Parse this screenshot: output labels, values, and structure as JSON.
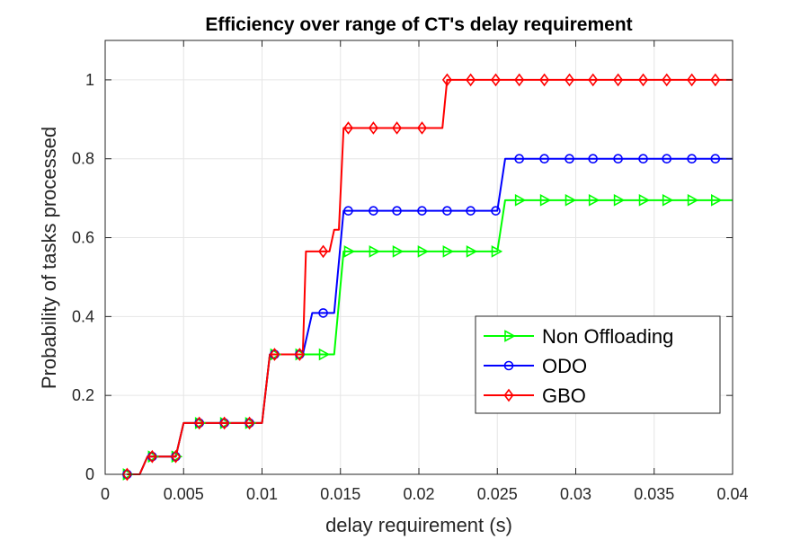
{
  "chart_data": {
    "type": "line",
    "title": "Efficiency over range of CT's delay requirement",
    "xlabel": "delay requirement (s)",
    "ylabel": "Probability of tasks processed",
    "xlim": [
      0,
      0.04
    ],
    "ylim": [
      0,
      1.1
    ],
    "x_ticks": [
      0,
      0.005,
      0.01,
      0.015,
      0.02,
      0.025,
      0.03,
      0.035,
      0.04
    ],
    "x_tick_labels": [
      "0",
      "0.005",
      "0.01",
      "0.015",
      "0.02",
      "0.025",
      "0.03",
      "0.035",
      "0.04"
    ],
    "y_ticks": [
      0,
      0.2,
      0.4,
      0.6,
      0.8,
      1
    ],
    "y_tick_labels": [
      "0",
      "0.2",
      "0.4",
      "0.6",
      "0.8",
      "1"
    ],
    "grid": true,
    "legend_position": "right",
    "marker_x": [
      0.0014,
      0.003,
      0.0045,
      0.006,
      0.0076,
      0.0092,
      0.0108,
      0.0124,
      0.0139,
      0.0155,
      0.0171,
      0.0186,
      0.0202,
      0.0218,
      0.0233,
      0.0249,
      0.0264,
      0.028,
      0.0296,
      0.0311,
      0.0327,
      0.0343,
      0.0358,
      0.0374,
      0.0389
    ],
    "series": [
      {
        "name": "Non Offloading",
        "color": "#00ff00",
        "marker": "triangle-right",
        "step_x": [
          0.0014,
          0.0022,
          0.0027,
          0.0045,
          0.005,
          0.01,
          0.0105,
          0.0146,
          0.0152,
          0.025,
          0.0255,
          0.04
        ],
        "step_y": [
          0,
          0,
          0.045,
          0.045,
          0.13,
          0.13,
          0.304,
          0.304,
          0.565,
          0.565,
          0.695,
          0.695
        ],
        "marker_y": [
          0,
          0.045,
          0.045,
          0.13,
          0.13,
          0.13,
          0.304,
          0.304,
          0.304,
          0.565,
          0.565,
          0.565,
          0.565,
          0.565,
          0.565,
          0.565,
          0.695,
          0.695,
          0.695,
          0.695,
          0.695,
          0.695,
          0.695,
          0.695,
          0.695
        ]
      },
      {
        "name": "ODO",
        "color": "#0000ff",
        "marker": "circle",
        "step_x": [
          0.0014,
          0.0022,
          0.0027,
          0.0045,
          0.005,
          0.01,
          0.0105,
          0.0126,
          0.0132,
          0.0146,
          0.0152,
          0.025,
          0.0255,
          0.04
        ],
        "step_y": [
          0,
          0,
          0.045,
          0.045,
          0.13,
          0.13,
          0.304,
          0.304,
          0.409,
          0.409,
          0.668,
          0.668,
          0.8,
          0.8
        ],
        "marker_y": [
          0,
          0.045,
          0.045,
          0.13,
          0.13,
          0.13,
          0.304,
          0.304,
          0.409,
          0.668,
          0.668,
          0.668,
          0.668,
          0.668,
          0.668,
          0.668,
          0.8,
          0.8,
          0.8,
          0.8,
          0.8,
          0.8,
          0.8,
          0.8,
          0.8
        ]
      },
      {
        "name": "GBO",
        "color": "#ff0000",
        "marker": "diamond",
        "step_x": [
          0.0014,
          0.0022,
          0.0027,
          0.0045,
          0.005,
          0.01,
          0.0105,
          0.0126,
          0.0128,
          0.0143,
          0.0146,
          0.0149,
          0.0152,
          0.0215,
          0.0218,
          0.04
        ],
        "step_y": [
          0,
          0,
          0.045,
          0.045,
          0.13,
          0.13,
          0.304,
          0.304,
          0.565,
          0.565,
          0.62,
          0.62,
          0.878,
          0.878,
          1,
          1
        ],
        "marker_y": [
          0,
          0.045,
          0.045,
          0.13,
          0.13,
          0.13,
          0.304,
          0.304,
          0.565,
          0.878,
          0.878,
          0.878,
          0.878,
          1,
          1,
          1,
          1,
          1,
          1,
          1,
          1,
          1,
          1,
          1,
          1
        ]
      }
    ]
  }
}
